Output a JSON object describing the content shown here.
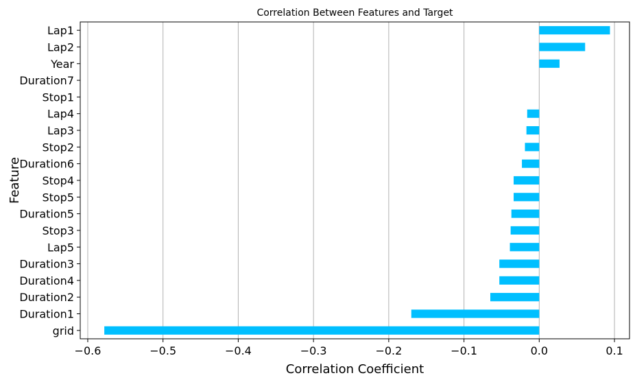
{
  "chart_data": {
    "type": "bar",
    "orientation": "horizontal",
    "title": "Correlation Between Features and Target",
    "xlabel": "Correlation Coefficient",
    "ylabel": "Feature",
    "xlim": [
      -0.61,
      0.12
    ],
    "xticks": [
      -0.6,
      -0.5,
      -0.4,
      -0.3,
      -0.2,
      -0.1,
      0.0,
      0.1
    ],
    "xtick_labels": [
      "−0.6",
      "−0.5",
      "−0.4",
      "−0.3",
      "−0.2",
      "−0.1",
      "0.0",
      "0.1"
    ],
    "grid": "vertical",
    "bar_color": "#00BFFF",
    "categories": [
      "Lap1",
      "Lap2",
      "Year",
      "Duration7",
      "Stop1",
      "Lap4",
      "Lap3",
      "Stop2",
      "Duration6",
      "Stop4",
      "Stop5",
      "Duration5",
      "Stop3",
      "Lap5",
      "Duration3",
      "Duration4",
      "Duration2",
      "Duration1",
      "grid"
    ],
    "values": [
      0.094,
      0.061,
      0.027,
      0.0,
      0.0,
      -0.016,
      -0.017,
      -0.019,
      -0.023,
      -0.034,
      -0.034,
      -0.037,
      -0.038,
      -0.039,
      -0.053,
      -0.053,
      -0.065,
      -0.17,
      -0.578
    ]
  }
}
